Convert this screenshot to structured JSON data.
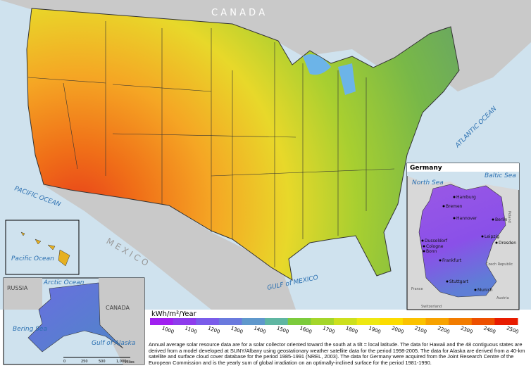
{
  "map": {
    "labels": {
      "canada": "C A N A D A",
      "mexico": "M E X I C O",
      "pacific": "PACIFIC OCEAN",
      "atlantic": "ATLANTIC OCEAN",
      "gulf": "GULF of MEXICO"
    },
    "hawaii": {
      "ocean": "Pacific Ocean"
    },
    "alaska": {
      "russia": "RUSSIA",
      "arctic": "Arctic Ocean",
      "canada": "CANADA",
      "bering": "Bering Sea",
      "gulf": "Gulf of Alaska",
      "scale": [
        "0",
        "250",
        "500",
        "1,000"
      ],
      "unit": "Miles"
    },
    "germany": {
      "title": "Germany",
      "seas": [
        "North Sea",
        "Baltic Sea"
      ],
      "countries": [
        "Poland",
        "Czech Republic",
        "France",
        "Austria",
        "Switzerland"
      ],
      "cities": [
        "Hamburg",
        "Bremen",
        "Hannover",
        "Berlin",
        "Leipzig",
        "Dresden",
        "Dusseldorf",
        "Cologne",
        "Bonn",
        "Frankfurt",
        "Stuttgart",
        "Munich"
      ]
    },
    "legend": {
      "title": "kWh/m²/Year",
      "ticks": [
        1000,
        1100,
        1200,
        1300,
        1400,
        1500,
        1600,
        1700,
        1800,
        1900,
        2000,
        2100,
        2200,
        2300,
        2400,
        2500
      ],
      "colors": [
        "#a020f0",
        "#8e3cec",
        "#7a5cea",
        "#6a7ade",
        "#5f98cc",
        "#5fb6a2",
        "#7ccb3c",
        "#a4d62a",
        "#cce01e",
        "#eee812",
        "#fcdc00",
        "#fbc200",
        "#f7a200",
        "#f27c00",
        "#ed5000",
        "#e81c00"
      ]
    },
    "caption": "Annual average solar resource data are for a solar collector oriented toward the south at a tilt = local latitude.  The data for Hawaii and the 48 contiguous states are derived from a model developed at SUNY/Albany using geostationary weather satellite data for the period 1998-2005.  The data for Alaska are derived from a 40-km satellite and surface cloud cover database for the period 1985-1991 (NREL, 2003).  The data for Germany were acquired from the Joint Research Centre of the European Commission and is the yearly sum of global irradiation on an optimally-inclined surface for the period 1981-1990."
  }
}
